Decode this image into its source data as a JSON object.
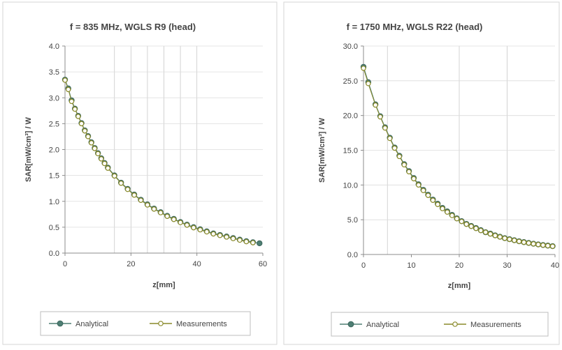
{
  "chart_data": [
    {
      "type": "line",
      "title": "f = 835 MHz, WGLS R9 (head)",
      "xlabel": "z[mm]",
      "ylabel": "SAR[mW/cm³] / W",
      "xlim": [
        0,
        60
      ],
      "ylim": [
        0,
        4
      ],
      "xticks": [
        0,
        20,
        40,
        60
      ],
      "xtick_labels": [
        "0",
        "20",
        "40",
        "60"
      ],
      "yticks": [
        0,
        0.5,
        1,
        1.5,
        2,
        2.5,
        3,
        3.5,
        4
      ],
      "ytick_labels": [
        "0.0",
        "0.5",
        "1.0",
        "1.5",
        "2.0",
        "2.5",
        "3.0",
        "3.5",
        "4.0"
      ],
      "minor_vertical_grid": [
        15,
        20,
        25,
        30,
        35,
        40
      ],
      "grid": true,
      "legend_position": "bottom",
      "series": [
        {
          "name": "Analytical",
          "color": "#4f7f74",
          "marker": "filled-circle",
          "x": [
            0,
            1,
            2,
            3,
            4,
            5,
            6,
            7,
            8,
            9,
            10,
            11,
            12,
            13,
            15,
            17,
            19,
            21,
            23,
            25,
            27,
            29,
            31,
            33,
            35,
            37,
            39,
            41,
            43,
            45,
            47,
            49,
            51,
            53,
            55,
            57,
            59
          ],
          "y": [
            3.35,
            3.18,
            2.95,
            2.79,
            2.65,
            2.51,
            2.37,
            2.26,
            2.14,
            2.03,
            1.93,
            1.83,
            1.74,
            1.65,
            1.5,
            1.36,
            1.24,
            1.13,
            1.03,
            0.94,
            0.86,
            0.79,
            0.72,
            0.66,
            0.6,
            0.55,
            0.5,
            0.46,
            0.42,
            0.38,
            0.35,
            0.32,
            0.29,
            0.26,
            0.23,
            0.21,
            0.19
          ]
        },
        {
          "name": "Measurements",
          "color": "#8a8a2a",
          "marker": "open-circle",
          "x": [
            0,
            1,
            2,
            3,
            4,
            5,
            6,
            7,
            8,
            9,
            10,
            11,
            12,
            13,
            15,
            17,
            19,
            21,
            23,
            25,
            27,
            29,
            31,
            33,
            35,
            37,
            39,
            41,
            43,
            45,
            47,
            49,
            51,
            53,
            55,
            57
          ],
          "y": [
            3.34,
            3.16,
            2.93,
            2.78,
            2.64,
            2.5,
            2.36,
            2.25,
            2.13,
            2.02,
            1.92,
            1.82,
            1.73,
            1.64,
            1.49,
            1.35,
            1.23,
            1.12,
            1.02,
            0.93,
            0.85,
            0.78,
            0.71,
            0.65,
            0.59,
            0.54,
            0.49,
            0.45,
            0.41,
            0.37,
            0.34,
            0.31,
            0.28,
            0.25,
            0.22,
            0.2
          ]
        }
      ]
    },
    {
      "type": "line",
      "title": "f = 1750 MHz, WGLS R22 (head)",
      "xlabel": "z[mm]",
      "ylabel": "SAR[mW/cm³] / W",
      "xlim": [
        0,
        40
      ],
      "ylim": [
        0,
        30
      ],
      "xticks": [
        0,
        10,
        20,
        30,
        40
      ],
      "xtick_labels": [
        "0",
        "10",
        "20",
        "30",
        "40"
      ],
      "yticks": [
        0,
        5,
        10,
        15,
        20,
        25,
        30
      ],
      "ytick_labels": [
        "0.0",
        "5.0",
        "10.0",
        "15.0",
        "20.0",
        "25.0",
        "30.0"
      ],
      "minor_vertical_grid": [
        5,
        20,
        30
      ],
      "grid": true,
      "legend_position": "bottom",
      "series": [
        {
          "name": "Analytical",
          "color": "#4f7f74",
          "marker": "filled-circle",
          "x": [
            0,
            1,
            2.5,
            3.5,
            4.5,
            5.5,
            6.5,
            7.5,
            8.5,
            9.5,
            10.5,
            11.5,
            12.5,
            13.5,
            14.5,
            15.5,
            16.5,
            17.5,
            18.5,
            19.5,
            20.5,
            21.5,
            22.5,
            23.5,
            24.5,
            25.5,
            26.5,
            27.5,
            28.5,
            29.5,
            30.5,
            31.5,
            32.5,
            33.5,
            34.5,
            35.5,
            36.5,
            37.5,
            38.5,
            39.5
          ],
          "y": [
            27.0,
            24.8,
            21.6,
            19.9,
            18.3,
            16.8,
            15.4,
            14.2,
            13.0,
            12.0,
            11.0,
            10.1,
            9.3,
            8.6,
            7.9,
            7.3,
            6.7,
            6.2,
            5.7,
            5.2,
            4.8,
            4.4,
            4.1,
            3.8,
            3.5,
            3.2,
            3.0,
            2.75,
            2.55,
            2.35,
            2.2,
            2.05,
            1.9,
            1.78,
            1.66,
            1.55,
            1.45,
            1.36,
            1.28,
            1.2
          ]
        },
        {
          "name": "Measurements",
          "color": "#8a8a2a",
          "marker": "open-circle",
          "x": [
            0,
            1,
            2.5,
            3.5,
            4.5,
            5.5,
            6.5,
            7.5,
            8.5,
            9.5,
            10.5,
            11.5,
            12.5,
            13.5,
            14.5,
            15.5,
            16.5,
            17.5,
            18.5,
            19.5,
            20.5,
            21.5,
            22.5,
            23.5,
            24.5,
            25.5,
            26.5,
            27.5,
            28.5,
            29.5,
            30.5,
            31.5,
            32.5,
            33.5,
            34.5,
            35.5,
            36.5,
            37.5,
            38.5,
            39.5
          ],
          "y": [
            26.8,
            24.6,
            21.5,
            19.8,
            18.2,
            16.7,
            15.3,
            14.1,
            12.9,
            11.9,
            10.9,
            10.0,
            9.2,
            8.5,
            7.8,
            7.2,
            6.6,
            6.1,
            5.6,
            5.15,
            4.75,
            4.35,
            4.05,
            3.75,
            3.45,
            3.2,
            2.95,
            2.72,
            2.52,
            2.33,
            2.18,
            2.03,
            1.88,
            1.76,
            1.64,
            1.53,
            1.43,
            1.34,
            1.26,
            1.18
          ]
        }
      ]
    }
  ]
}
